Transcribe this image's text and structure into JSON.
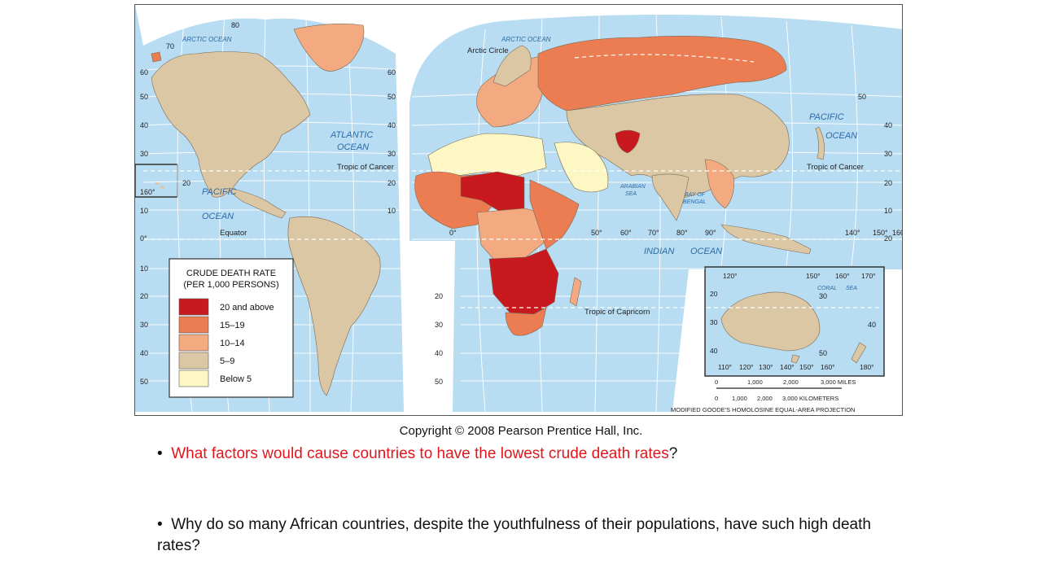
{
  "map": {
    "legend": {
      "title_line1": "CRUDE DEATH RATE",
      "title_line2": "(PER 1,000 PERSONS)",
      "items": [
        {
          "label": "20 and above",
          "color": "#c8191e"
        },
        {
          "label": "15–19",
          "color": "#ec7d52"
        },
        {
          "label": "10–14",
          "color": "#f4aa80"
        },
        {
          "label": "5–9",
          "color": "#dcc7a4"
        },
        {
          "label": "Below 5",
          "color": "#fdf7c3"
        }
      ]
    },
    "colors": {
      "ocean": "#b8dcf2",
      "grid": "#ffffff",
      "border": "#7a6a55"
    },
    "ocean_labels": {
      "arctic_left": "ARCTIC OCEAN",
      "arctic_right": "ARCTIC OCEAN",
      "atlantic_1": "ATLANTIC",
      "atlantic_2": "OCEAN",
      "pacific_left_1": "PACIFIC",
      "pacific_left_2": "OCEAN",
      "pacific_right_1": "PACIFIC",
      "pacific_right_2": "OCEAN",
      "indian": "INDIAN",
      "indian_2": "OCEAN",
      "arabian_1": "ARABIAN",
      "arabian_2": "SEA",
      "bengal_1": "BAY OF",
      "bengal_2": "BENGAL",
      "coral": "CORAL",
      "coral_2": "SEA"
    },
    "line_labels": {
      "arctic_circle": "Arctic Circle",
      "tropic_cancer_left": "Tropic of Cancer",
      "tropic_cancer_right": "Tropic of Cancer",
      "equator": "Equator",
      "tropic_capricorn": "Tropic of Capricorn"
    },
    "lat_ticks_left": [
      "80",
      "70",
      "60",
      "50",
      "40",
      "30",
      "20",
      "10",
      "0°",
      "10",
      "20",
      "30",
      "40",
      "50"
    ],
    "lat_ticks_mid": [
      "60",
      "50",
      "40",
      "30",
      "20",
      "10",
      "20",
      "30",
      "40",
      "50"
    ],
    "lat_ticks_right": [
      "50",
      "40",
      "30",
      "20",
      "10",
      "20",
      "30",
      "40",
      "50"
    ],
    "lon_ticks": [
      "0°",
      "50°",
      "60°",
      "70°",
      "80°",
      "90°",
      "140°",
      "150°",
      "160°"
    ],
    "inset_ticks_top": [
      "120°",
      "150°",
      "160°",
      "170°"
    ],
    "inset_ticks_bottom": [
      "110°",
      "120°",
      "130°",
      "140°",
      "150°",
      "160°",
      "180°"
    ],
    "inset_lat": [
      "20",
      "30",
      "40"
    ],
    "small_inset": "160°",
    "scale": {
      "miles_ticks": [
        "0",
        "1,000",
        "2,000",
        "3,000 MILES"
      ],
      "km_ticks": [
        "0",
        "1,000",
        "2,000",
        "3,000 KILOMETERS"
      ],
      "projection": "MODIFIED GOODE'S HOMOLOSINE EQUAL-AREA PROJECTION"
    }
  },
  "copyright": "Copyright © 2008 Pearson Prentice Hall, Inc.",
  "questions": {
    "q1_bullet": "•",
    "q1_text": "What factors would cause countries to have the lowest crude death rates",
    "q1_end": "?",
    "q2_bullet": "•",
    "q2_text": "Why do so many African countries, despite the youthfulness of their populations, have such high death rates?"
  }
}
